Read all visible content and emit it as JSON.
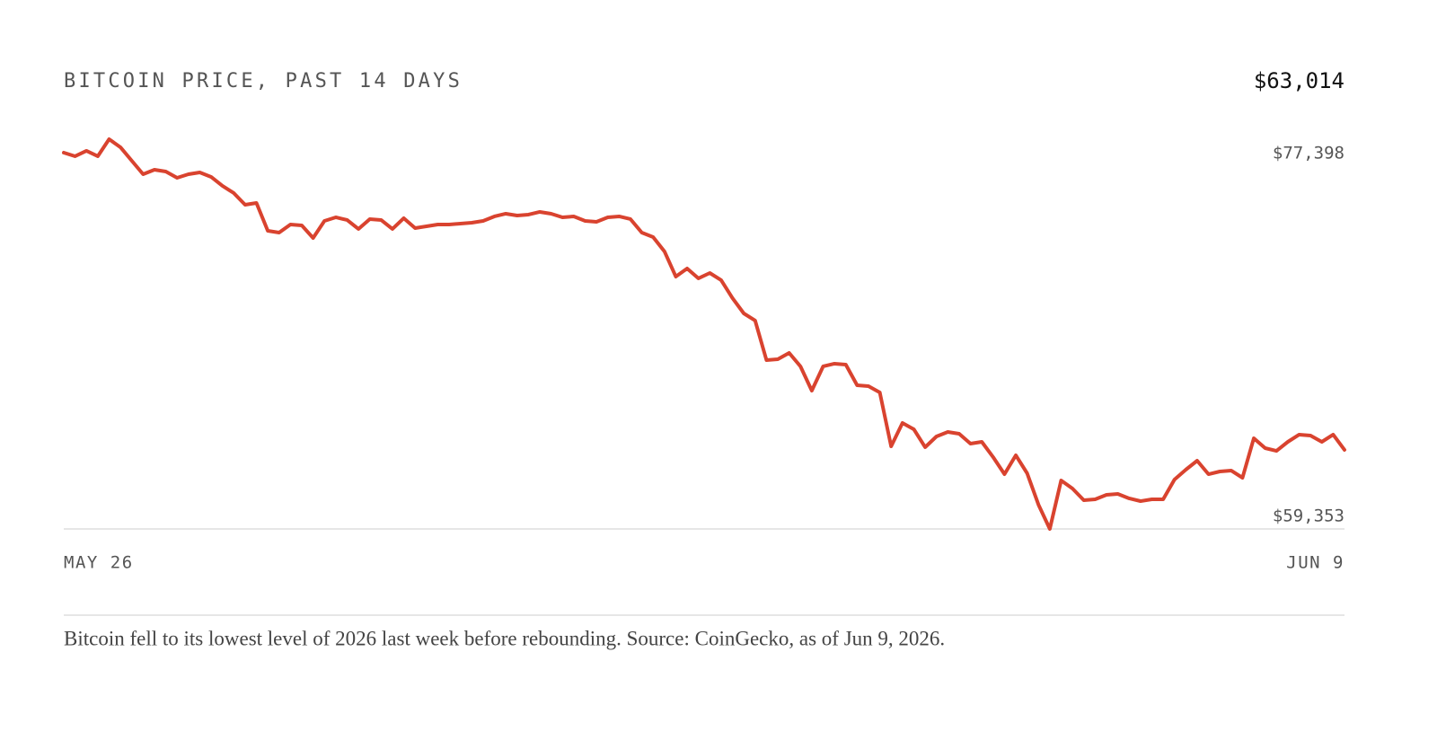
{
  "chart_data": {
    "type": "line",
    "title": "BITCOIN PRICE, PAST 14 DAYS",
    "current_price": "$63,014",
    "caption": "Bitcoin fell to its lowest level of 2026 last week before rebounding. Source: CoinGecko, as of Jun 9, 2026.",
    "categories": [
      "MAY 26",
      null,
      null,
      null,
      null,
      null,
      null,
      null,
      null,
      null,
      null,
      null,
      null,
      null,
      null,
      null,
      null,
      null,
      null,
      null,
      null,
      null,
      null,
      null,
      null,
      null,
      null,
      null,
      null,
      null,
      null,
      null,
      null,
      null,
      null,
      null,
      null,
      null,
      null,
      null,
      null,
      null,
      null,
      null,
      null,
      null,
      null,
      null,
      null,
      null,
      null,
      null,
      null,
      null,
      null,
      null,
      null,
      null,
      null,
      null,
      null,
      null,
      null,
      null,
      null,
      null,
      null,
      null,
      null,
      null,
      null,
      null,
      null,
      null,
      null,
      null,
      null,
      null,
      null,
      null,
      null,
      null,
      null,
      null,
      null,
      null,
      null,
      null,
      null,
      null,
      null,
      null,
      null,
      null,
      null,
      null,
      null,
      null,
      null,
      null,
      null,
      null,
      null,
      null,
      null,
      null,
      null,
      null,
      null,
      null,
      null,
      null,
      null,
      "JUN 9"
    ],
    "series": [
      {
        "name": "Bitcoin price",
        "color": "#d9432f",
        "values": [
          76775,
          76609,
          76858,
          76609,
          77398,
          77025,
          76401,
          75777,
          75985,
          75902,
          75611,
          75777,
          75860,
          75652,
          75237,
          74904,
          74363,
          74447,
          73158,
          73074,
          73449,
          73407,
          72825,
          73615,
          73781,
          73657,
          73241,
          73698,
          73657,
          73241,
          73740,
          73282,
          73365,
          73449,
          73449,
          73490,
          73532,
          73615,
          73823,
          73948,
          73864,
          73906,
          74031,
          73948,
          73781,
          73823,
          73615,
          73573,
          73781,
          73823,
          73698,
          73074,
          72867,
          72201,
          71037,
          71411,
          70954,
          71203,
          70871,
          70039,
          69332,
          69000,
          67170,
          67212,
          67503,
          66879,
          65756,
          66879,
          67004,
          66962,
          66006,
          65964,
          65673,
          63178,
          64259,
          63968,
          63137,
          63636,
          63844,
          63760,
          63303,
          63386,
          62679,
          61889,
          62763,
          61931,
          60476,
          59353,
          61598,
          61224,
          60684,
          60725,
          60933,
          60975,
          60767,
          60642,
          60725,
          60725,
          61640,
          62097,
          62513,
          61889,
          62014,
          62056,
          61723,
          63553,
          63095,
          62970,
          63386,
          63719,
          63677,
          63386,
          63719,
          63014
        ]
      }
    ],
    "ylim": [
      59353,
      77398
    ],
    "yticks": [
      {
        "value": 77398,
        "label": "$77,398"
      },
      {
        "value": 59353,
        "label": "$59,353"
      }
    ]
  }
}
